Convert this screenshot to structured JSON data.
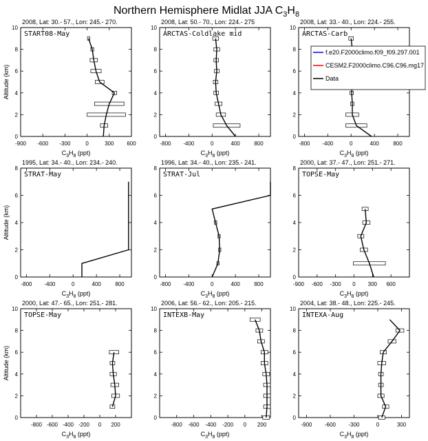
{
  "figure": {
    "title_main": "Northern Hemisphere Midlat JJA C",
    "title_sub": "3",
    "title_main2": "H",
    "title_sub2": "8"
  },
  "legend": {
    "entries": [
      {
        "label": "f.e20.F2000climo.f09_f09.297.001",
        "color": "#0000ff"
      },
      {
        "label": "CESM2.F2000climo.C96.C96.mg17",
        "color": "#ff0000"
      },
      {
        "label": "Data",
        "color": "#000000"
      }
    ]
  },
  "axis_labels": {
    "x": "C3H8 (ppt)",
    "x_parts": [
      "C",
      "3",
      "H",
      "8",
      " (ppt)"
    ],
    "y": "Altitude (km)"
  },
  "chart_data": [
    {
      "type": "line",
      "name": "START08-May",
      "header": "2008, Lat:  30.- 57., Lon: 245.- 270.",
      "xlim": [
        -900,
        600
      ],
      "ylim": [
        0,
        10
      ],
      "xticks": [
        -900,
        -600,
        -300,
        0,
        300,
        600
      ],
      "yticks": [
        0,
        2,
        4,
        6,
        8,
        10
      ],
      "y": [
        9,
        8,
        7,
        6,
        5,
        4,
        3,
        2,
        1,
        0
      ],
      "x": [
        20,
        70,
        90,
        120,
        170,
        370,
        300,
        260,
        230,
        220
      ],
      "err": [
        15,
        20,
        50,
        70,
        60,
        30,
        200,
        260,
        50,
        0
      ]
    },
    {
      "type": "line",
      "name": "ARCTAS-Coldlake mid",
      "header": "2008, Lat:  50.- 70., Lon: 224.- 275",
      "xlim": [
        -900,
        1000
      ],
      "ylim": [
        0,
        10
      ],
      "xticks": [
        -800,
        -400,
        0,
        400,
        800
      ],
      "yticks": [
        0,
        2,
        4,
        6,
        8,
        10
      ],
      "y": [
        9,
        8,
        7,
        6,
        5,
        4,
        3,
        2,
        1,
        0
      ],
      "x": [
        60,
        80,
        70,
        80,
        60,
        70,
        110,
        150,
        250,
        400
      ],
      "err": [
        50,
        50,
        40,
        40,
        40,
        40,
        60,
        80,
        230,
        0
      ]
    },
    {
      "type": "line",
      "name": "ARCTAS-Carb",
      "header": "2008, Lat:  33.- 40., Lon: 224.- 255.",
      "xlim": [
        -900,
        1000
      ],
      "ylim": [
        0,
        10
      ],
      "xticks": [
        -800,
        -400,
        0,
        400,
        800
      ],
      "yticks": [
        0,
        2,
        4,
        6,
        8,
        10
      ],
      "y": [
        9,
        8,
        7,
        6,
        5,
        4,
        3,
        2,
        1,
        0
      ],
      "x": [
        0,
        20,
        40,
        40,
        20,
        10,
        20,
        20,
        90,
        350
      ],
      "err": [
        40,
        30,
        50,
        50,
        40,
        30,
        30,
        110,
        180,
        0
      ]
    },
    {
      "type": "line",
      "name": "STRAT-May",
      "header": "1995, Lat: 34.- 40., Lon: 234.- 240.",
      "xlim": [
        -900,
        1000
      ],
      "ylim": [
        0,
        8
      ],
      "xticks": [
        -800,
        -400,
        0,
        400,
        800
      ],
      "yticks": [
        0,
        2,
        4,
        6,
        8
      ],
      "y": [
        0,
        1,
        2,
        3,
        4,
        5,
        6,
        7
      ],
      "x": [
        150,
        150,
        950,
        950,
        950,
        950,
        950,
        950
      ],
      "err": [
        0,
        0,
        0,
        0,
        0,
        0,
        0,
        0
      ]
    },
    {
      "type": "line",
      "name": "STRAT-Jul",
      "header": "1996, Lat: 34.- 40., Lon: 235.- 241.",
      "xlim": [
        -900,
        1000
      ],
      "ylim": [
        0,
        8
      ],
      "xticks": [
        -800,
        -400,
        0,
        400,
        800
      ],
      "yticks": [
        0,
        2,
        4,
        6,
        8
      ],
      "y": [
        0,
        1,
        2,
        3,
        4,
        5,
        6,
        7
      ],
      "x": [
        0,
        100,
        130,
        120,
        60,
        0,
        1000,
        1000
      ],
      "err": [
        0,
        20,
        20,
        20,
        20,
        0,
        0,
        0
      ]
    },
    {
      "type": "line",
      "name": "TOPSE-May",
      "header": "2000, Lat: 37.- 47., Lon: 251.- 271.",
      "xlim": [
        -900,
        900
      ],
      "ylim": [
        0,
        8
      ],
      "xticks": [
        -900,
        -600,
        -300,
        0,
        300,
        600
      ],
      "yticks": [
        0,
        2,
        4,
        6,
        8
      ],
      "y": [
        5,
        4,
        3,
        2,
        1,
        0
      ],
      "x": [
        180,
        200,
        110,
        160,
        250,
        320
      ],
      "err": [
        50,
        60,
        50,
        60,
        260,
        0
      ]
    },
    {
      "type": "line",
      "name": "TOPSE-May",
      "header": "2000, Lat: 47.- 65., Lon: 251.- 281.",
      "xlim": [
        -1000,
        400
      ],
      "ylim": [
        0,
        10
      ],
      "xticks": [
        -800,
        -600,
        -400,
        -200,
        0,
        200
      ],
      "yticks": [
        0,
        2,
        4,
        6,
        8,
        10
      ],
      "y": [
        6,
        5,
        4,
        3,
        2,
        1
      ],
      "x": [
        180,
        160,
        170,
        190,
        200,
        160
      ],
      "err": [
        60,
        30,
        40,
        50,
        50,
        30
      ]
    },
    {
      "type": "line",
      "name": "INTEXB-May",
      "header": "2006, Lat: 56.- 62., Lon: 205.- 215.",
      "xlim": [
        -1000,
        300
      ],
      "ylim": [
        0,
        10
      ],
      "xticks": [
        -800,
        -600,
        -400,
        -200,
        0,
        200
      ],
      "yticks": [
        0,
        2,
        4,
        6,
        8,
        10
      ],
      "y": [
        9,
        8,
        7,
        6,
        5,
        4,
        3,
        2,
        1,
        0
      ],
      "x": [
        120,
        170,
        190,
        230,
        230,
        250,
        260,
        260,
        260,
        250
      ],
      "err": [
        60,
        40,
        40,
        40,
        40,
        40,
        40,
        40,
        40,
        40
      ]
    },
    {
      "type": "line",
      "name": "INTEXA-Aug",
      "header": "2004, Lat: 38.- 48., Lon: 225.- 245.",
      "xlim": [
        -1000,
        400
      ],
      "ylim": [
        0,
        10
      ],
      "xticks": [
        -900,
        -600,
        -300,
        0,
        300
      ],
      "yticks": [
        0,
        2,
        4,
        6,
        8,
        10
      ],
      "y": [
        9,
        8,
        7,
        6,
        5,
        4,
        3,
        2,
        1,
        0
      ],
      "x": [
        150,
        280,
        180,
        70,
        50,
        40,
        40,
        40,
        100,
        50
      ],
      "err": [
        0,
        50,
        50,
        40,
        50,
        30,
        30,
        40,
        40,
        40
      ]
    }
  ]
}
